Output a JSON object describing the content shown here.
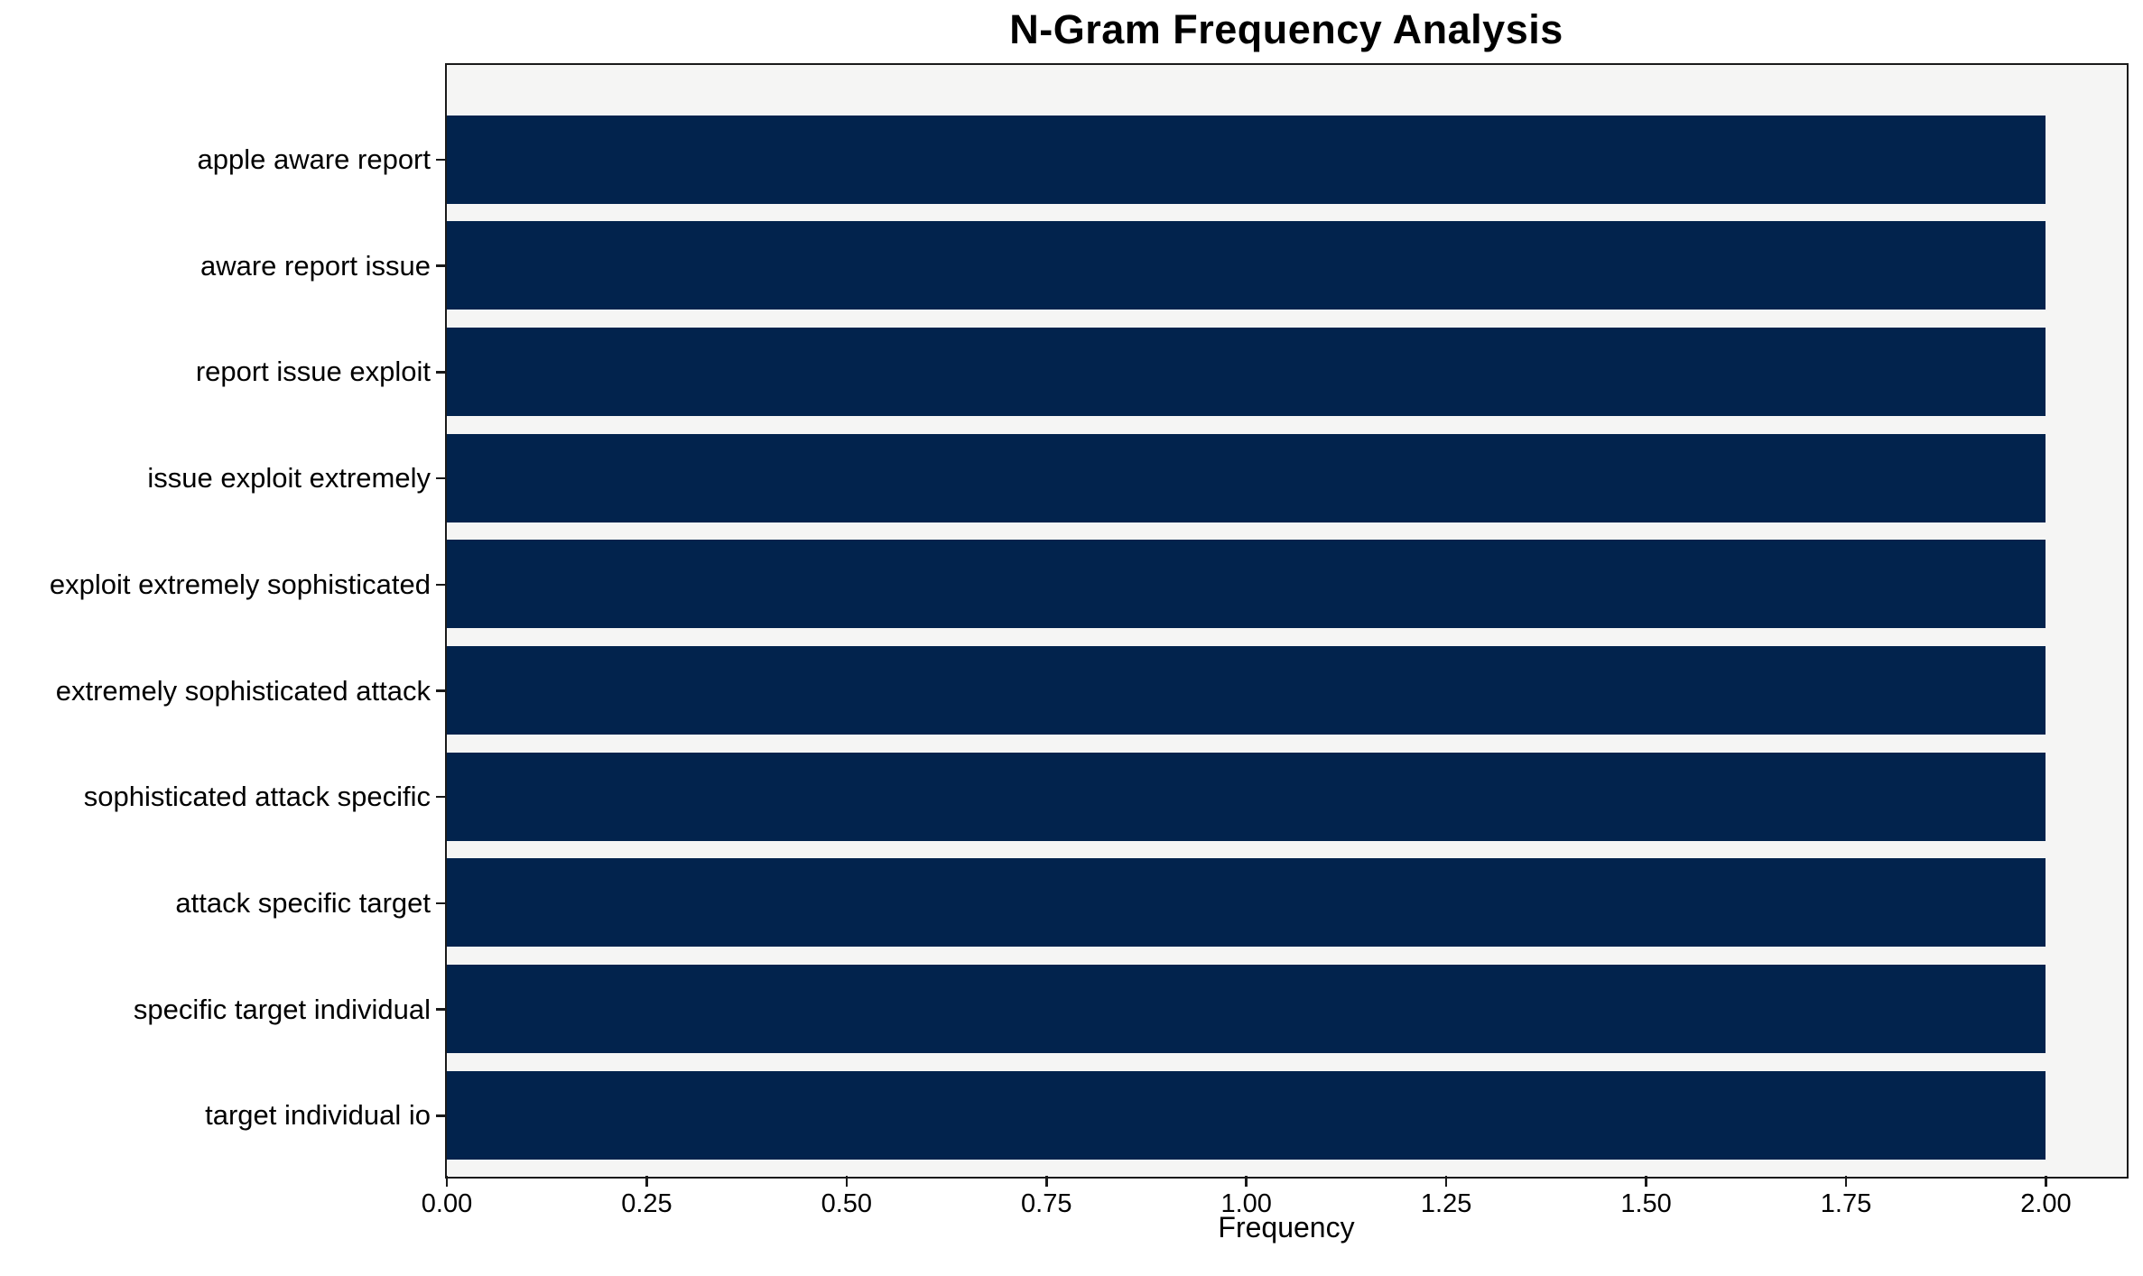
{
  "chart_data": {
    "type": "bar",
    "orientation": "horizontal",
    "title": "N-Gram Frequency Analysis",
    "xlabel": "Frequency",
    "ylabel": "",
    "categories": [
      "apple aware report",
      "aware report issue",
      "report issue exploit",
      "issue exploit extremely",
      "exploit extremely sophisticated",
      "extremely sophisticated attack",
      "sophisticated attack specific",
      "attack specific target",
      "specific target individual",
      "target individual io"
    ],
    "values": [
      2,
      2,
      2,
      2,
      2,
      2,
      2,
      2,
      2,
      2
    ],
    "xlim": [
      0,
      2.1
    ],
    "xticks": [
      0,
      0.25,
      0.5,
      0.75,
      1.0,
      1.25,
      1.5,
      1.75,
      2.0
    ],
    "xtick_labels": [
      "0.00",
      "0.25",
      "0.50",
      "0.75",
      "1.00",
      "1.25",
      "1.50",
      "1.75",
      "2.00"
    ],
    "grid": false,
    "legend": null,
    "colors": {
      "bar": "#02234d",
      "plot_background": "#f5f5f4",
      "figure_background": "#ffffff",
      "spine": "#1a1a1a",
      "text": "#000000"
    }
  }
}
